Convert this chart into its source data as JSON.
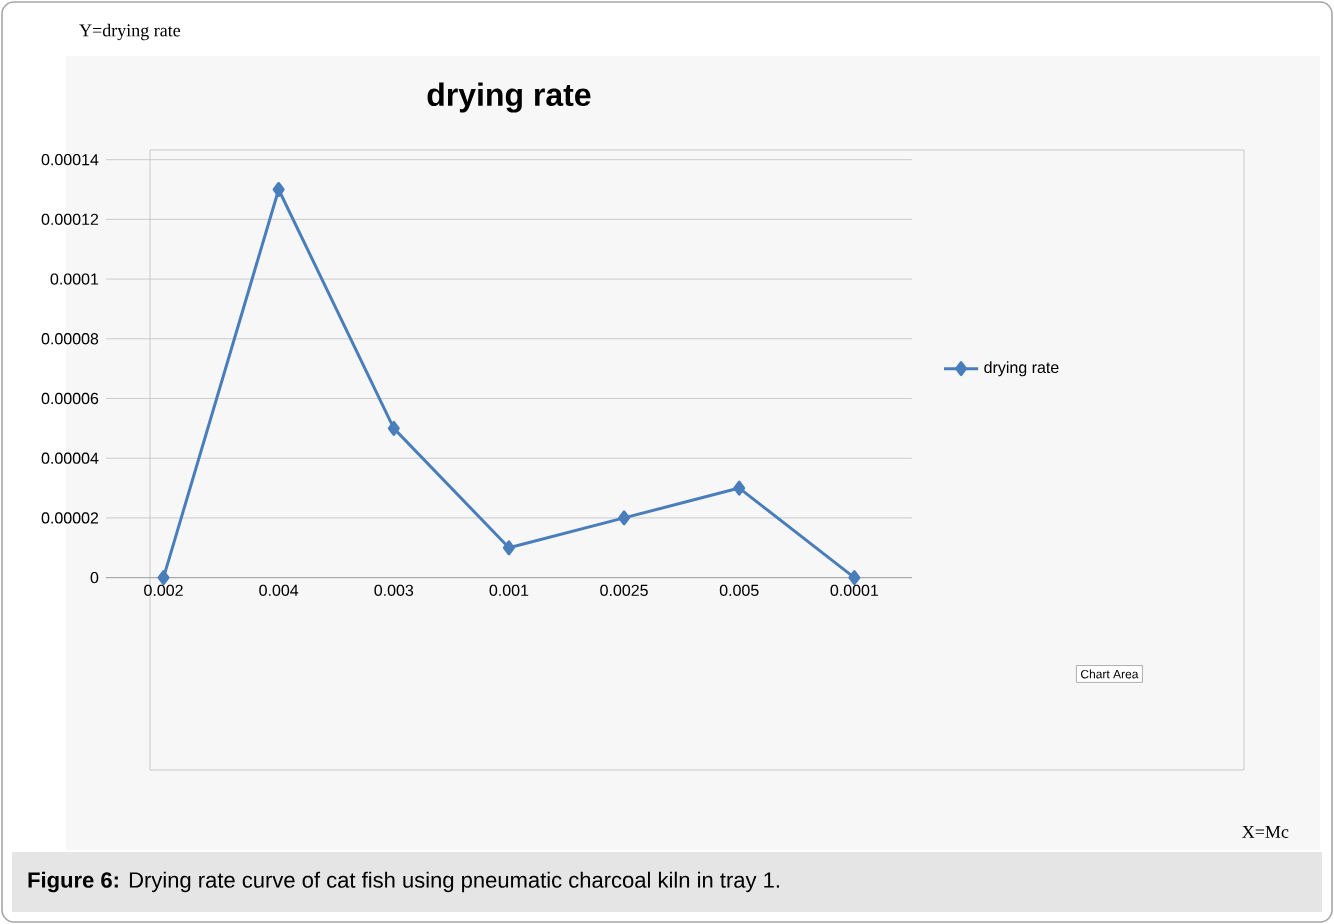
{
  "chart_data": {
    "type": "line",
    "title": "drying rate",
    "categories": [
      "0.002",
      "0.004",
      "0.003",
      "0.001",
      "0.0025",
      "0.005",
      "0.0001"
    ],
    "series": [
      {
        "name": "drying rate",
        "color": "#4a7ebb",
        "values": [
          0,
          0.00013,
          5e-05,
          1e-05,
          2e-05,
          3e-05,
          0
        ]
      }
    ],
    "ylim": [
      0,
      0.00014
    ],
    "yticks": [
      {
        "value": 0,
        "label": "0"
      },
      {
        "value": 2e-05,
        "label": "0.00002"
      },
      {
        "value": 4e-05,
        "label": "0.00004"
      },
      {
        "value": 6e-05,
        "label": "0.00006"
      },
      {
        "value": 8e-05,
        "label": "0.00008"
      },
      {
        "value": 0.0001,
        "label": "0.0001"
      },
      {
        "value": 0.00012,
        "label": "0.00012"
      },
      {
        "value": 0.00014,
        "label": "0.00014"
      }
    ],
    "grid": "y",
    "legend": "right",
    "marker": "diamond",
    "line_style": "solid",
    "annotations": [
      "Y=drying rate",
      "X=Mc",
      "Chart Area",
      "**Figure 6:** Drying rate curve of cat fish using pneumatic charcoal kiln in tray 1."
    ]
  }
}
